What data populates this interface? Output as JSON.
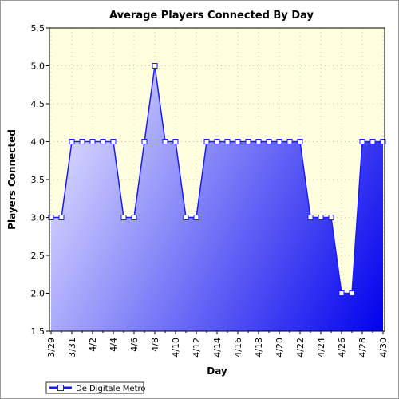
{
  "chart_data": {
    "type": "area",
    "title": "Average Players Connected By Day",
    "xlabel": "Day",
    "ylabel": "Players Connected",
    "ylim": [
      1.5,
      5.5
    ],
    "yticks": [
      "1.5",
      "2.0",
      "2.5",
      "3.0",
      "3.5",
      "4.0",
      "4.5",
      "5.0",
      "5.5"
    ],
    "x_tick_labels": [
      "3/29",
      "3/31",
      "4/2",
      "4/4",
      "4/6",
      "4/8",
      "4/10",
      "4/12",
      "4/14",
      "4/16",
      "4/18",
      "4/20",
      "4/22",
      "4/24",
      "4/26",
      "4/28",
      "4/30"
    ],
    "x": [
      "3/29",
      "3/30",
      "3/31",
      "4/1",
      "4/2",
      "4/3",
      "4/4",
      "4/5",
      "4/6",
      "4/7",
      "4/8",
      "4/9",
      "4/10",
      "4/11",
      "4/12",
      "4/13",
      "4/14",
      "4/15",
      "4/16",
      "4/17",
      "4/18",
      "4/19",
      "4/20",
      "4/21",
      "4/22",
      "4/23",
      "4/24",
      "4/25",
      "4/26",
      "4/27",
      "4/28",
      "4/29",
      "4/30"
    ],
    "series": [
      {
        "name": "De Digitale Metro",
        "values": [
          3,
          3,
          4,
          4,
          4,
          4,
          4,
          3,
          3,
          4,
          5,
          4,
          4,
          3,
          3,
          4,
          4,
          4,
          4,
          4,
          4,
          4,
          4,
          4,
          4,
          3,
          3,
          3,
          2,
          2,
          4,
          4,
          4
        ]
      }
    ],
    "grid": true,
    "legend": "bottom-left",
    "colors": {
      "plot_bg": "#ffffe0",
      "line": "#1a1aff",
      "fill_light": "#d8d8ff",
      "fill_dark": "#0000ee",
      "marker_fill": "#ffffff"
    }
  }
}
